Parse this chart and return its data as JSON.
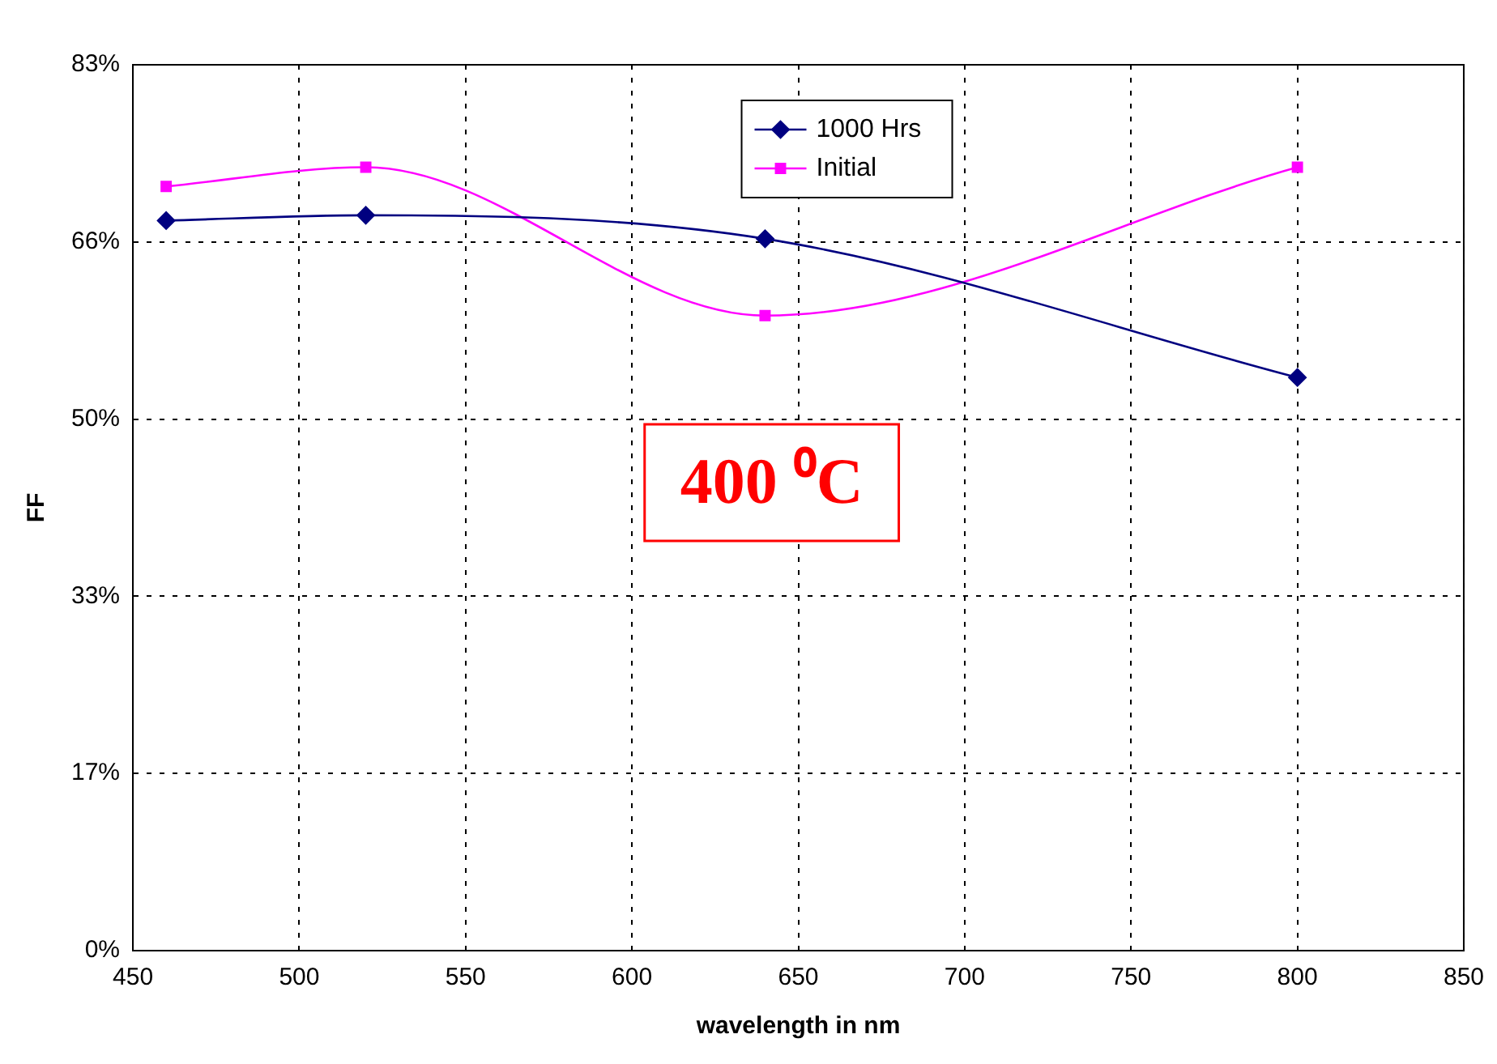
{
  "chart_data": {
    "type": "line",
    "xlabel": "wavelength in nm",
    "ylabel": "FF",
    "x": [
      460,
      520,
      640,
      800
    ],
    "series": [
      {
        "name": "1000 Hrs",
        "color": "#000080",
        "marker": "diamond",
        "values": [
          68.4,
          68.9,
          66.7,
          53.7
        ]
      },
      {
        "name": "Initial",
        "color": "#ff00ff",
        "marker": "square",
        "values": [
          71.6,
          73.4,
          59.5,
          73.4
        ]
      }
    ],
    "xlim": [
      450,
      850
    ],
    "xticks": [
      450,
      500,
      550,
      600,
      650,
      700,
      750,
      800,
      850
    ],
    "ylim": [
      0,
      83
    ],
    "yticks": [
      {
        "value": 0,
        "label": "0%"
      },
      {
        "value": 16.6,
        "label": "17%"
      },
      {
        "value": 33.2,
        "label": "33%"
      },
      {
        "value": 49.8,
        "label": "50%"
      },
      {
        "value": 66.4,
        "label": "66%"
      },
      {
        "value": 83,
        "label": "83%"
      }
    ],
    "grid": true,
    "legend": "top",
    "annotations": [
      "400 ⁰C"
    ]
  }
}
